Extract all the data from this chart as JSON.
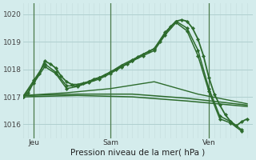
{
  "bg_color": "#d4ecec",
  "grid_color_h": "#b0d0d0",
  "grid_color_v": "#c8e0e0",
  "line_color": "#2d6b2d",
  "xlabel": "Pression niveau de la mer( hPa )",
  "ylim": [
    1015.5,
    1020.4
  ],
  "yticks": [
    1016,
    1017,
    1018,
    1019,
    1020
  ],
  "xlim": [
    0,
    42
  ],
  "vline_positions": [
    2,
    16,
    34
  ],
  "vline_labels": [
    "Jeu",
    "Sam",
    "Ven"
  ],
  "n_vgrid": 42,
  "lines": [
    {
      "x": [
        0,
        1,
        2,
        3,
        4,
        5,
        6,
        7,
        8,
        9,
        10,
        11,
        12,
        13,
        14,
        15,
        16,
        17,
        18,
        19,
        20,
        21,
        22,
        23,
        24,
        25,
        26,
        27,
        28,
        29,
        30,
        31,
        32,
        33,
        34,
        35,
        36,
        37,
        38,
        39,
        40,
        41
      ],
      "y": [
        1017.0,
        1017.15,
        1017.55,
        1017.85,
        1018.3,
        1018.2,
        1018.05,
        1017.75,
        1017.55,
        1017.45,
        1017.45,
        1017.5,
        1017.55,
        1017.65,
        1017.7,
        1017.8,
        1017.9,
        1018.0,
        1018.1,
        1018.2,
        1018.3,
        1018.45,
        1018.55,
        1018.65,
        1018.75,
        1019.0,
        1019.3,
        1019.55,
        1019.75,
        1019.8,
        1019.75,
        1019.5,
        1019.1,
        1018.5,
        1017.7,
        1017.1,
        1016.7,
        1016.35,
        1016.1,
        1015.95,
        1016.1,
        1016.2
      ],
      "lw": 1.3,
      "marker": "D",
      "ms": 2.2,
      "ls": "-"
    },
    {
      "x": [
        0,
        2,
        4,
        6,
        8,
        10,
        12,
        14,
        16,
        18,
        20,
        22,
        24,
        26,
        28,
        30,
        32,
        34,
        36,
        38,
        40
      ],
      "y": [
        1017.0,
        1017.6,
        1018.2,
        1017.9,
        1017.4,
        1017.4,
        1017.55,
        1017.7,
        1017.9,
        1018.15,
        1018.35,
        1018.55,
        1018.75,
        1019.35,
        1019.75,
        1019.5,
        1018.7,
        1017.3,
        1016.3,
        1016.1,
        1015.8
      ],
      "lw": 1.1,
      "marker": "D",
      "ms": 2.2,
      "ls": "-"
    },
    {
      "x": [
        0,
        2,
        4,
        6,
        8,
        10,
        12,
        14,
        16,
        18,
        20,
        22,
        24,
        26,
        28,
        30,
        32,
        34,
        36,
        38,
        40
      ],
      "y": [
        1017.0,
        1017.5,
        1018.1,
        1017.85,
        1017.3,
        1017.38,
        1017.52,
        1017.65,
        1017.85,
        1018.08,
        1018.3,
        1018.5,
        1018.68,
        1019.25,
        1019.7,
        1019.4,
        1018.5,
        1017.2,
        1016.2,
        1016.05,
        1015.75
      ],
      "lw": 1.1,
      "marker": "D",
      "ms": 2.2,
      "ls": "-"
    },
    {
      "x": [
        0,
        10,
        20,
        30,
        41
      ],
      "y": [
        1017.0,
        1017.05,
        1017.0,
        1016.85,
        1016.65
      ],
      "lw": 1.1,
      "marker": null,
      "ms": 0,
      "ls": "-"
    },
    {
      "x": [
        0,
        10,
        20,
        30,
        41
      ],
      "y": [
        1017.05,
        1017.1,
        1017.1,
        1016.95,
        1016.7
      ],
      "lw": 1.1,
      "marker": null,
      "ms": 0,
      "ls": "-"
    },
    {
      "x": [
        0,
        8,
        16,
        24,
        32,
        41
      ],
      "y": [
        1017.05,
        1017.15,
        1017.3,
        1017.55,
        1017.1,
        1016.75
      ],
      "lw": 1.0,
      "marker": null,
      "ms": 0,
      "ls": "-"
    }
  ],
  "vline_color": "#4a7a4a",
  "vline_lw": 0.9,
  "tick_fontsize": 6.5,
  "xlabel_fontsize": 7.5
}
